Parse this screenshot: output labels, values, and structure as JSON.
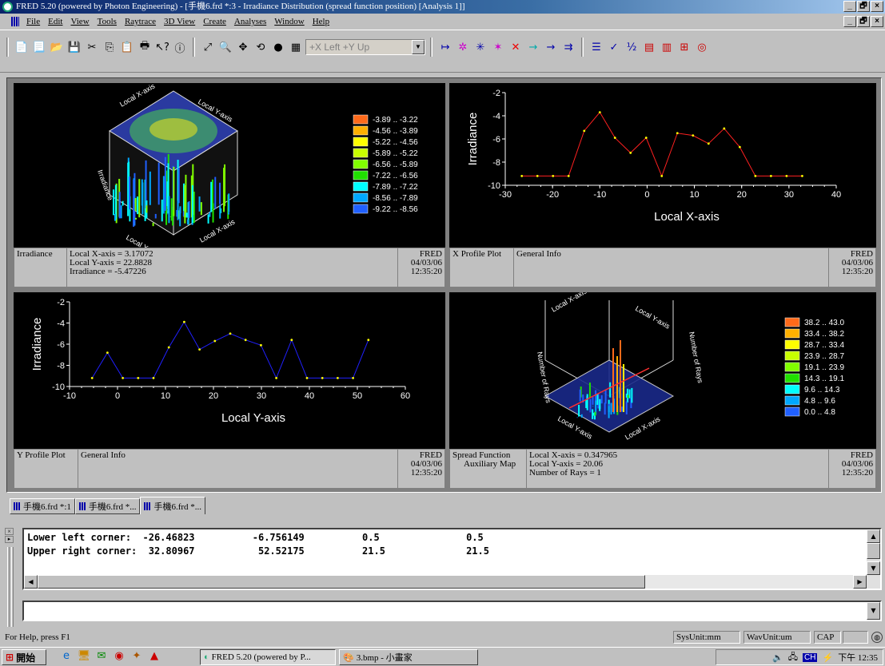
{
  "window": {
    "title": "FRED 5.20 (powered by Photon Engineering) - [手機6.frd *:3 - Irradiance Distribution (spread function position)  [Analysis 1]]",
    "min": "_",
    "max": "🗗",
    "close": "×"
  },
  "menu": [
    "File",
    "Edit",
    "View",
    "Tools",
    "Raytrace",
    "3D View",
    "Create",
    "Analyses",
    "Window",
    "Help"
  ],
  "toolbar": {
    "view_combo": "+X Left +Y Up",
    "icons_left": [
      "new-icon",
      "new-template-icon",
      "open-icon",
      "save-icon",
      "cut-icon",
      "copy-icon",
      "paste-icon",
      "print-icon",
      "help-pointer-icon",
      "info-icon"
    ],
    "icons_view": [
      "zoom-fit-icon",
      "zoom-window-icon",
      "pan-icon",
      "rotate-icon",
      "sphere-icon",
      "grid-icon"
    ],
    "icons_trace": [
      "trace-arrow-icon",
      "trace-sparkle-icon",
      "trace-multi-icon",
      "trace-star-icon",
      "trace-x-icon",
      "arrow-right-icon",
      "arrow-right-2-icon",
      "arrow-text-icon"
    ],
    "icons_analysis": [
      "list-icon",
      "check-icon",
      "number-icon",
      "report-icon",
      "chart-icon",
      "network-icon",
      "target-icon"
    ]
  },
  "panes": {
    "irradiance3d": {
      "legend": [
        "-3.89 .. -3.22",
        "-4.56 .. -3.89",
        "-5.22 .. -4.56",
        "-5.89 .. -5.22",
        "-6.56 .. -5.89",
        "-7.22 .. -6.56",
        "-7.89 .. -7.22",
        "-8.56 .. -7.89",
        "-9.22 .. -8.56"
      ],
      "legend_colors": [
        "#ff6a1a",
        "#ffb000",
        "#ffff00",
        "#c8ff00",
        "#80ff00",
        "#20e000",
        "#00ffff",
        "#00a8ff",
        "#2060ff"
      ],
      "axis_x": "Local X-axis",
      "axis_y": "Local Y-axis",
      "axis_z": "Irradiance",
      "info_label": "Irradiance",
      "info_lines": [
        "Local X-axis = 3.17072",
        "Local Y-axis = 22.8828",
        "Irradiance = -5.47226"
      ],
      "stamp": [
        "FRED",
        "04/03/06",
        "12:35:20"
      ]
    },
    "xprofile": {
      "info_label": "X Profile Plot",
      "info_text": "General Info",
      "stamp": [
        "FRED",
        "04/03/06",
        "12:35:20"
      ],
      "chart_data": {
        "type": "line",
        "xlabel": "Local X-axis",
        "ylabel": "Irradiance",
        "xlim": [
          -30,
          40
        ],
        "ylim": [
          -10,
          -2
        ],
        "xticks": [
          "-30",
          "-20",
          "-10",
          "0",
          "10",
          "20",
          "30",
          "40"
        ],
        "yticks": [
          "-2",
          "-4",
          "-6",
          "-8",
          "-10"
        ],
        "color": "#ff2020",
        "x": [
          -26.5,
          -23.2,
          -19.9,
          -16.6,
          -13.3,
          -10.0,
          -6.8,
          -3.5,
          -0.2,
          3.1,
          6.4,
          9.7,
          13.0,
          16.3,
          19.6,
          22.9,
          26.2,
          29.5,
          32.8
        ],
        "y": [
          -9.2,
          -9.2,
          -9.2,
          -9.2,
          -5.3,
          -3.7,
          -5.9,
          -7.2,
          -5.9,
          -9.2,
          -5.5,
          -5.7,
          -6.4,
          -5.1,
          -6.7,
          -9.2,
          -9.2,
          -9.2,
          -9.2
        ]
      }
    },
    "yprofile": {
      "info_label": "Y Profile Plot",
      "info_text": "General Info",
      "stamp": [
        "FRED",
        "04/03/06",
        "12:35:20"
      ],
      "chart_data": {
        "type": "line",
        "xlabel": "Local Y-axis",
        "ylabel": "Irradiance",
        "xlim": [
          -10,
          60
        ],
        "ylim": [
          -10,
          -2
        ],
        "xticks": [
          "-10",
          "0",
          "10",
          "20",
          "30",
          "40",
          "50",
          "60"
        ],
        "yticks": [
          "-2",
          "-4",
          "-6",
          "-8",
          "-10"
        ],
        "color": "#2020ff",
        "x": [
          -5.3,
          -2.1,
          1.1,
          4.3,
          7.5,
          10.7,
          13.9,
          17.1,
          20.3,
          23.5,
          26.7,
          29.9,
          33.1,
          36.3,
          39.5,
          42.7,
          45.9,
          49.1,
          52.3
        ],
        "y": [
          -9.2,
          -6.8,
          -9.2,
          -9.2,
          -9.2,
          -6.3,
          -3.9,
          -6.5,
          -5.7,
          -5.0,
          -5.6,
          -6.1,
          -9.2,
          -5.6,
          -9.2,
          -9.2,
          -9.2,
          -9.2,
          -5.6
        ]
      }
    },
    "spread3d": {
      "legend": [
        "38.2 .. 43.0",
        "33.4 .. 38.2",
        "28.7 .. 33.4",
        "23.9 .. 28.7",
        "19.1 .. 23.9",
        "14.3 .. 19.1",
        "9.6 .. 14.3",
        "4.8 .. 9.6",
        "0.0 .. 4.8"
      ],
      "legend_colors": [
        "#ff6a1a",
        "#ffb000",
        "#ffff00",
        "#c8ff00",
        "#80ff00",
        "#20e000",
        "#00ffff",
        "#00a8ff",
        "#2060ff"
      ],
      "axis_x": "Local X-axis",
      "axis_y": "Local Y-axis",
      "axis_z": "Number of Rays",
      "info_label": "Spread Function Auxiliary Map",
      "info_label_lines": [
        "Spread Function",
        "Auxiliary Map"
      ],
      "info_lines": [
        "Local X-axis = 0.347965",
        "Local Y-axis = 20.06",
        "Number of Rays = 1"
      ],
      "stamp": [
        "FRED",
        "04/03/06",
        "12:35:20"
      ]
    }
  },
  "tabs": [
    "手機6.frd *:1",
    "手機6.frd *...",
    "手機6.frd *..."
  ],
  "output": {
    "lines": [
      "Lower left corner:  -26.46823          -6.756149          0.5               0.5",
      "Upper right corner:  32.80967           52.52175          21.5              21.5"
    ]
  },
  "status": {
    "help": "For Help, press F1",
    "sysunit": "SysUnit:mm",
    "wavunit": "WavUnit:um",
    "cap": "CAP"
  },
  "taskbar": {
    "start": "開始",
    "tasks": [
      "FRED 5.20 (powered by P...",
      "3.bmp - 小畫家"
    ],
    "clock": "下午 12:35",
    "ime": "CH"
  }
}
